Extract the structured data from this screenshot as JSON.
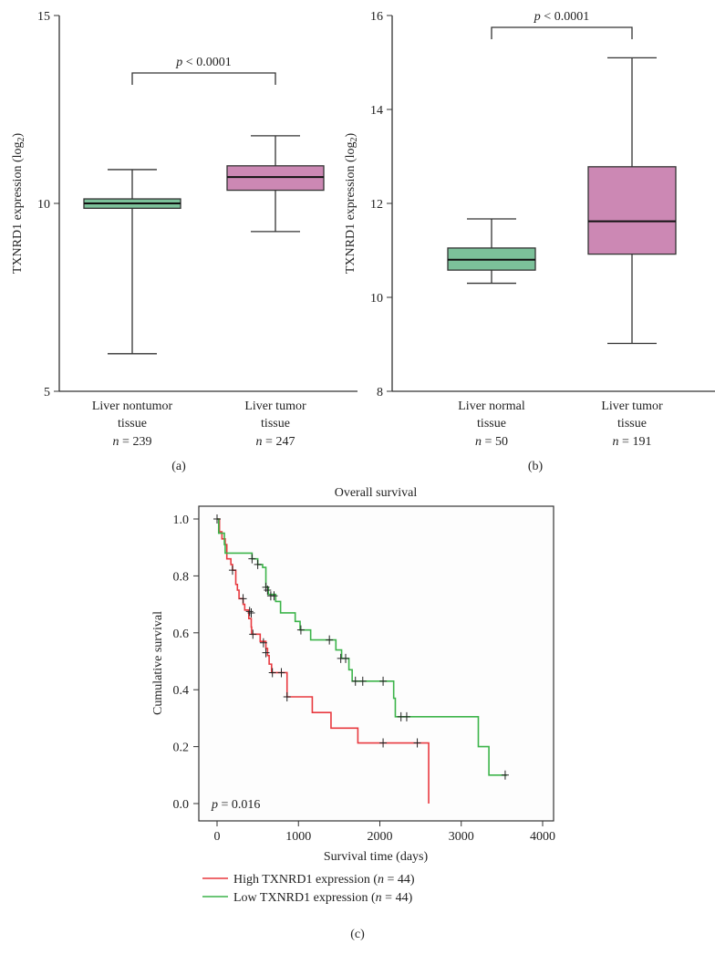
{
  "chart_data": [
    {
      "type": "box",
      "panel_label": "(a)",
      "ylabel": "TXNRD1 expression (log",
      "ylabel_sub": "2",
      "ylabel_close": ")",
      "ylim": [
        5,
        15
      ],
      "yticks": [
        "5",
        "10",
        "15"
      ],
      "annotation": "< 0.0001",
      "annotation_p": "p",
      "groups": [
        {
          "label1": "Liver nontumor",
          "label2": "tissue",
          "n": "= 239",
          "color": "#7cc19a",
          "whisker_low": 6.0,
          "q1": 9.87,
          "median": 10.0,
          "q3": 10.12,
          "whisker_high": 10.9
        },
        {
          "label1": "Liver tumor",
          "label2": "tissue",
          "n": "= 247",
          "color": "#cc88b4",
          "whisker_low": 9.25,
          "q1": 10.35,
          "median": 10.7,
          "q3": 11.0,
          "whisker_high": 11.8
        }
      ]
    },
    {
      "type": "box",
      "panel_label": "(b)",
      "ylabel": "TXNRD1 expression (log",
      "ylabel_sub": "2",
      "ylabel_close": ")",
      "ylim": [
        8,
        16
      ],
      "yticks": [
        "8",
        "10",
        "12",
        "14",
        "16"
      ],
      "annotation": "< 0.0001",
      "annotation_p": "p",
      "groups": [
        {
          "label1": "Liver normal",
          "label2": "tissue",
          "n": "= 50",
          "color": "#7cc19a",
          "whisker_low": 10.3,
          "q1": 10.58,
          "median": 10.8,
          "q3": 11.05,
          "whisker_high": 11.67
        },
        {
          "label1": "Liver tumor",
          "label2": "tissue",
          "n": "= 191",
          "color": "#cc88b4",
          "whisker_low": 9.02,
          "q1": 10.92,
          "median": 11.62,
          "q3": 12.78,
          "whisker_high": 15.1
        }
      ]
    },
    {
      "type": "line",
      "subtype": "kaplan-meier",
      "panel_label": "(c)",
      "title": "Overall survival",
      "xlabel": "Survival time (days)",
      "ylabel": "Cumulative survival",
      "xlim": [
        0,
        4000
      ],
      "ylim": [
        0,
        1
      ],
      "xticks": [
        "0",
        "1000",
        "2000",
        "3000",
        "4000"
      ],
      "yticks": [
        "0.0",
        "0.2",
        "0.4",
        "0.6",
        "0.8",
        "1.0"
      ],
      "annotation": "= 0.016",
      "annotation_p": "p",
      "legend_position": "bottom",
      "series": [
        {
          "name": "High TXNRD1 expression (",
          "n": "= 44)",
          "color": "#e8393f",
          "steps": [
            [
              0,
              1
            ],
            [
              30,
              0.955
            ],
            [
              60,
              0.93
            ],
            [
              100,
              0.91
            ],
            [
              120,
              0.86
            ],
            [
              170,
              0.84
            ],
            [
              190,
              0.82
            ],
            [
              230,
              0.77
            ],
            [
              250,
              0.75
            ],
            [
              270,
              0.72
            ],
            [
              320,
              0.7
            ],
            [
              340,
              0.68
            ],
            [
              390,
              0.65
            ],
            [
              420,
              0.62
            ],
            [
              425,
              0.595
            ],
            [
              530,
              0.57
            ],
            [
              600,
              0.545
            ],
            [
              620,
              0.52
            ],
            [
              640,
              0.49
            ],
            [
              670,
              0.46
            ],
            [
              860,
              0.375
            ],
            [
              1170,
              0.32
            ],
            [
              1400,
              0.265
            ],
            [
              1730,
              0.213
            ],
            [
              2600,
              0.0
            ]
          ],
          "censored": [
            [
              0,
              1
            ],
            [
              190,
              0.82
            ],
            [
              320,
              0.72
            ],
            [
              400,
              0.675
            ],
            [
              420,
              0.67
            ],
            [
              440,
              0.595
            ],
            [
              570,
              0.565
            ],
            [
              600,
              0.53
            ],
            [
              680,
              0.46
            ],
            [
              790,
              0.46
            ],
            [
              860,
              0.375
            ],
            [
              2040,
              0.213
            ],
            [
              2460,
              0.213
            ]
          ]
        },
        {
          "name": "Low TXNRD1 expression (",
          "n": "= 44)",
          "color": "#3cb44a",
          "steps": [
            [
              0,
              1
            ],
            [
              20,
              0.95
            ],
            [
              90,
              0.91
            ],
            [
              100,
              0.88
            ],
            [
              400,
              0.88
            ],
            [
              430,
              0.86
            ],
            [
              500,
              0.84
            ],
            [
              560,
              0.83
            ],
            [
              600,
              0.76
            ],
            [
              630,
              0.735
            ],
            [
              720,
              0.71
            ],
            [
              780,
              0.67
            ],
            [
              960,
              0.64
            ],
            [
              1020,
              0.61
            ],
            [
              1150,
              0.575
            ],
            [
              1460,
              0.54
            ],
            [
              1530,
              0.51
            ],
            [
              1620,
              0.47
            ],
            [
              1660,
              0.43
            ],
            [
              2170,
              0.37
            ],
            [
              2190,
              0.305
            ],
            [
              3210,
              0.2
            ],
            [
              3340,
              0.1
            ],
            [
              3560,
              0.1
            ]
          ],
          "censored": [
            [
              0,
              1
            ],
            [
              430,
              0.86
            ],
            [
              500,
              0.84
            ],
            [
              600,
              0.76
            ],
            [
              620,
              0.75
            ],
            [
              660,
              0.73
            ],
            [
              700,
              0.73
            ],
            [
              1030,
              0.61
            ],
            [
              1380,
              0.575
            ],
            [
              1520,
              0.51
            ],
            [
              1580,
              0.51
            ],
            [
              1700,
              0.43
            ],
            [
              1790,
              0.43
            ],
            [
              2040,
              0.43
            ],
            [
              2260,
              0.305
            ],
            [
              2330,
              0.305
            ],
            [
              3540,
              0.1
            ]
          ]
        }
      ]
    }
  ]
}
